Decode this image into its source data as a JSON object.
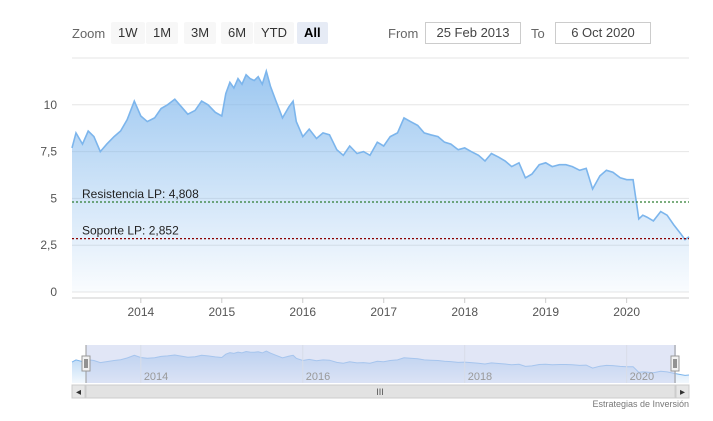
{
  "toolbar": {
    "zoom_label": "Zoom",
    "buttons": [
      "1W",
      "1M",
      "3M",
      "6M",
      "YTD",
      "All"
    ],
    "active_button": "All",
    "from_label": "From",
    "from_value": "25 Feb 2013",
    "to_label": "To",
    "to_value": "6 Oct 2020"
  },
  "colors": {
    "line": "#7cb5ec",
    "fill_top": "#7cb5ec",
    "resistance": "#2e7d32",
    "support": "#8b0000",
    "navigator_mask": "#c8d2ee"
  },
  "chart_data": {
    "type": "area",
    "x_range": [
      2013.15,
      2020.77
    ],
    "ylim": [
      0,
      12.5
    ],
    "y_ticks": [
      "0",
      "2,5",
      "5",
      "7,5",
      "10"
    ],
    "y_tick_values": [
      0,
      2.5,
      5,
      7.5,
      10
    ],
    "x_ticks": [
      "2014",
      "2015",
      "2016",
      "2017",
      "2018",
      "2019",
      "2020"
    ],
    "x_tick_values": [
      2014,
      2015,
      2016,
      2017,
      2018,
      2019,
      2020
    ],
    "grid": true,
    "x": [
      2013.15,
      2013.2,
      2013.28,
      2013.35,
      2013.42,
      2013.5,
      2013.58,
      2013.67,
      2013.75,
      2013.83,
      2013.92,
      2014.0,
      2014.08,
      2014.17,
      2014.25,
      2014.33,
      2014.42,
      2014.5,
      2014.58,
      2014.67,
      2014.75,
      2014.83,
      2014.92,
      2015.0,
      2015.05,
      2015.1,
      2015.15,
      2015.2,
      2015.25,
      2015.3,
      2015.35,
      2015.4,
      2015.45,
      2015.5,
      2015.55,
      2015.6,
      2015.67,
      2015.75,
      2015.83,
      2015.88,
      2015.92,
      2016.0,
      2016.08,
      2016.17,
      2016.25,
      2016.33,
      2016.42,
      2016.5,
      2016.58,
      2016.67,
      2016.75,
      2016.83,
      2016.92,
      2017.0,
      2017.08,
      2017.17,
      2017.25,
      2017.33,
      2017.42,
      2017.5,
      2017.58,
      2017.67,
      2017.75,
      2017.83,
      2017.92,
      2018.0,
      2018.08,
      2018.17,
      2018.25,
      2018.33,
      2018.42,
      2018.5,
      2018.58,
      2018.67,
      2018.75,
      2018.83,
      2018.92,
      2019.0,
      2019.08,
      2019.17,
      2019.25,
      2019.33,
      2019.42,
      2019.5,
      2019.58,
      2019.67,
      2019.75,
      2019.83,
      2019.92,
      2020.0,
      2020.08,
      2020.15,
      2020.2,
      2020.25,
      2020.33,
      2020.42,
      2020.5,
      2020.58,
      2020.67,
      2020.72,
      2020.77
    ],
    "series": [
      {
        "values": [
          7.7,
          8.5,
          7.9,
          8.6,
          8.3,
          7.5,
          7.9,
          8.3,
          8.6,
          9.2,
          10.2,
          9.4,
          9.1,
          9.3,
          9.8,
          10.0,
          10.3,
          9.9,
          9.5,
          9.7,
          10.2,
          10.0,
          9.6,
          9.4,
          10.6,
          11.2,
          10.9,
          11.4,
          11.1,
          11.6,
          11.4,
          11.3,
          11.5,
          11.1,
          11.8,
          11.0,
          10.2,
          9.3,
          9.9,
          10.2,
          9.1,
          8.3,
          8.7,
          8.2,
          8.5,
          8.4,
          7.6,
          7.3,
          7.8,
          7.4,
          7.5,
          7.3,
          8.0,
          7.8,
          8.3,
          8.5,
          9.3,
          9.1,
          8.9,
          8.5,
          8.4,
          8.3,
          8.0,
          7.9,
          7.6,
          7.7,
          7.5,
          7.3,
          7.0,
          7.4,
          7.2,
          7.0,
          6.7,
          6.9,
          6.1,
          6.3,
          6.8,
          6.9,
          6.7,
          6.8,
          6.8,
          6.7,
          6.5,
          6.6,
          5.5,
          6.2,
          6.5,
          6.4,
          6.1,
          6.0,
          6.0,
          3.9,
          4.1,
          4.0,
          3.8,
          4.3,
          4.1,
          3.6,
          3.1,
          2.8,
          2.95
        ]
      }
    ],
    "annotations": [
      {
        "label": "Resistencia LP: 4,808",
        "value": 4.808
      },
      {
        "label": "Soporte LP: 2,852",
        "value": 2.852
      }
    ]
  },
  "navigator": {
    "x_ticks": [
      "2014",
      "2016",
      "2018",
      "2020"
    ],
    "x_tick_values": [
      2014,
      2016,
      2018,
      2020
    ],
    "scroll_grip": "III",
    "left_arrow": "◂",
    "right_arrow": "▸"
  },
  "credits": "Estrategias de Inversión"
}
